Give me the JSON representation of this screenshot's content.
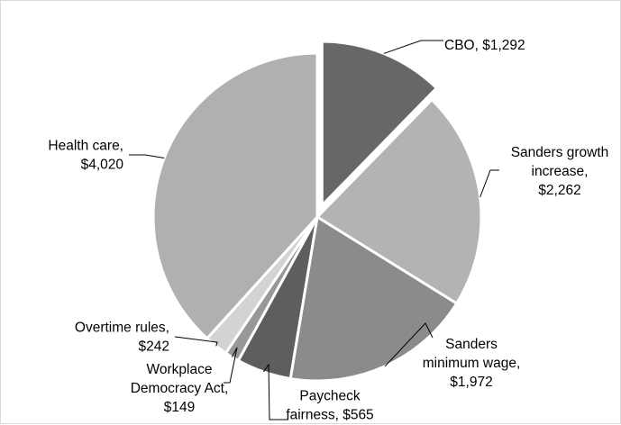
{
  "chart_data": {
    "type": "pie",
    "title": "",
    "exploded": [
      "CBO"
    ],
    "slices": [
      {
        "name": "CBO",
        "value": 1292,
        "display": "$1,292",
        "color": "#676767"
      },
      {
        "name": "Sanders growth increase",
        "value": 2262,
        "display": "$2,262",
        "color": "#b3b3b3"
      },
      {
        "name": "Sanders minimum wage",
        "value": 1972,
        "display": "$1,972",
        "color": "#8b8b8b"
      },
      {
        "name": "Paycheck fairness",
        "value": 565,
        "display": "$565",
        "color": "#5e5e5e"
      },
      {
        "name": "Workplace Democracy Act",
        "value": 149,
        "display": "$149",
        "color": "#989898"
      },
      {
        "name": "Overtime rules",
        "value": 242,
        "display": "$242",
        "color": "#d3d3d3"
      },
      {
        "name": "Health care",
        "value": 4020,
        "display": "$4,020",
        "color": "#b0b0b0"
      }
    ],
    "labels": [
      {
        "lines": [
          "CBO,  $1,292"
        ]
      },
      {
        "lines": [
          "Sanders growth",
          "increase,",
          "$2,262"
        ]
      },
      {
        "lines": [
          "Sanders",
          "minimum wage,",
          "$1,972"
        ]
      },
      {
        "lines": [
          "Paycheck",
          "fairness,  $565"
        ]
      },
      {
        "lines": [
          "Workplace",
          "Democracy Act,",
          "$149"
        ]
      },
      {
        "lines": [
          "Overtime rules,",
          "$242"
        ]
      },
      {
        "lines": [
          "Health care,",
          "$4,020"
        ]
      }
    ]
  }
}
